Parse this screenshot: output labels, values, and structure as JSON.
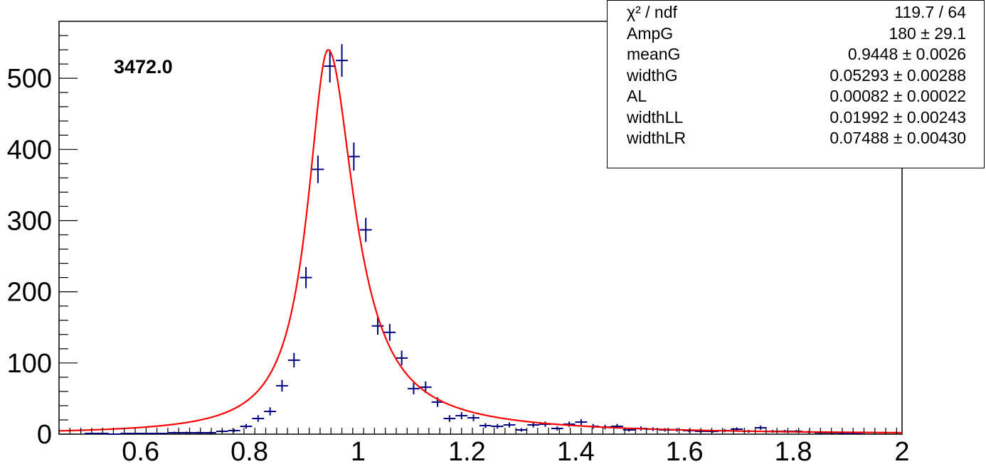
{
  "chart_data": {
    "type": "scatter",
    "annotation": "3472.0",
    "xlim": [
      0.45,
      2.0
    ],
    "ylim": [
      0,
      580
    ],
    "x_ticks": [
      "0.6",
      "0.8",
      "1",
      "1.2",
      "1.4",
      "1.6",
      "1.8",
      "2"
    ],
    "x_tick_values": [
      0.6,
      0.8,
      1.0,
      1.2,
      1.4,
      1.6,
      1.8,
      2.0
    ],
    "y_ticks": [
      "0",
      "100",
      "200",
      "300",
      "400",
      "500"
    ],
    "y_tick_values": [
      0,
      100,
      200,
      300,
      400,
      500
    ],
    "histogram_color": "#000080",
    "fit_color": "#ff0000",
    "bin_width": 0.022,
    "points": [
      [
        0.508,
        1
      ],
      [
        0.53,
        1
      ],
      [
        0.552,
        0
      ],
      [
        0.574,
        1
      ],
      [
        0.596,
        1
      ],
      [
        0.618,
        1
      ],
      [
        0.64,
        1
      ],
      [
        0.662,
        2
      ],
      [
        0.684,
        2
      ],
      [
        0.706,
        2
      ],
      [
        0.728,
        2
      ],
      [
        0.75,
        4
      ],
      [
        0.772,
        5
      ],
      [
        0.794,
        11
      ],
      [
        0.816,
        22
      ],
      [
        0.838,
        32
      ],
      [
        0.86,
        68
      ],
      [
        0.882,
        104
      ],
      [
        0.904,
        220
      ],
      [
        0.926,
        372
      ],
      [
        0.948,
        517
      ],
      [
        0.97,
        525
      ],
      [
        0.992,
        390
      ],
      [
        1.014,
        287
      ],
      [
        1.036,
        152
      ],
      [
        1.058,
        143
      ],
      [
        1.08,
        107
      ],
      [
        1.102,
        64
      ],
      [
        1.124,
        66
      ],
      [
        1.146,
        45
      ],
      [
        1.168,
        22
      ],
      [
        1.19,
        26
      ],
      [
        1.212,
        23
      ],
      [
        1.234,
        12
      ],
      [
        1.256,
        11
      ],
      [
        1.278,
        13
      ],
      [
        1.3,
        6
      ],
      [
        1.322,
        13
      ],
      [
        1.344,
        14
      ],
      [
        1.366,
        8
      ],
      [
        1.388,
        14
      ],
      [
        1.41,
        17
      ],
      [
        1.432,
        11
      ],
      [
        1.454,
        10
      ],
      [
        1.476,
        11
      ],
      [
        1.498,
        6
      ],
      [
        1.52,
        8
      ],
      [
        1.542,
        7
      ],
      [
        1.564,
        6
      ],
      [
        1.586,
        6
      ],
      [
        1.608,
        5
      ],
      [
        1.63,
        4
      ],
      [
        1.652,
        4
      ],
      [
        1.674,
        5
      ],
      [
        1.696,
        7
      ],
      [
        1.718,
        4
      ],
      [
        1.74,
        9
      ],
      [
        1.762,
        4
      ],
      [
        1.784,
        4
      ],
      [
        1.806,
        4
      ],
      [
        1.828,
        3
      ],
      [
        1.85,
        2
      ],
      [
        1.872,
        2
      ],
      [
        1.894,
        1
      ],
      [
        1.916,
        1
      ]
    ],
    "fit": {
      "name": "fit",
      "amp": 540,
      "mean": 0.9448,
      "width_left": 0.046,
      "width_right": 0.058,
      "tail_amp": 15,
      "tail_width": 0.3
    }
  },
  "stats": [
    {
      "name": "χ² / ndf",
      "value": "119.7 / 64"
    },
    {
      "name": "AmpG",
      "value": "180 ± 29.1"
    },
    {
      "name": "meanG",
      "value": "0.9448 ± 0.0026"
    },
    {
      "name": "widthG",
      "value": "0.05293 ± 0.00288"
    },
    {
      "name": "AL",
      "value": "0.00082 ± 0.00022"
    },
    {
      "name": "widthLL",
      "value": "0.01992 ± 0.00243"
    },
    {
      "name": "widthLR",
      "value": "0.07488 ± 0.00430"
    }
  ]
}
